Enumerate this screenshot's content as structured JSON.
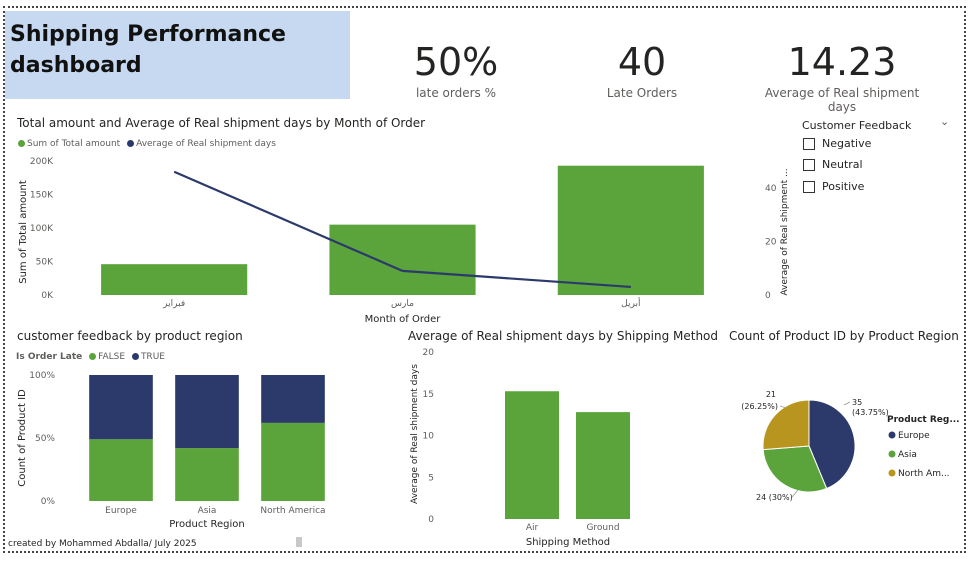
{
  "title": "Shipping Performance dashboard",
  "kpis": [
    {
      "value": "50%",
      "label": "late orders %"
    },
    {
      "value": "40",
      "label": "Late Orders"
    },
    {
      "value": "14.23",
      "label": "Average of Real shipment days"
    }
  ],
  "slicer": {
    "title": "Customer Feedback",
    "options": [
      "Negative",
      "Neutral",
      "Positive"
    ]
  },
  "footer": "created by Mohammed Abdalla/ July 2025",
  "colors": {
    "green": "#5ba33b",
    "navy": "#2b3a6b",
    "gold": "#b8951f",
    "title_bg": "#c6d9f0"
  },
  "chart_data": [
    {
      "type": "bar",
      "title": "Total amount and Average of Real shipment days by Month of Order",
      "legend": [
        "Sum of Total amount",
        "Average of Real shipment days"
      ],
      "categories": [
        "فبراير",
        "مارس",
        "أبريل"
      ],
      "series": [
        {
          "name": "Sum of Total amount",
          "type": "bar",
          "values": [
            46000,
            105000,
            193000
          ]
        },
        {
          "name": "Average of Real shipment days",
          "type": "line",
          "values": [
            46,
            9,
            3
          ]
        }
      ],
      "xlabel": "Month of Order",
      "ylabel": "Sum of Total amount",
      "y2label": "Average of Real shipment ...",
      "yticks": [
        "0K",
        "50K",
        "100K",
        "150K",
        "200K"
      ],
      "y2ticks": [
        "0",
        "20",
        "40"
      ],
      "ylim": [
        0,
        200000
      ],
      "y2lim": [
        0,
        50
      ]
    },
    {
      "type": "bar",
      "title": "customer feedback by product region",
      "legend_title": "Is Order Late",
      "legend": [
        "FALSE",
        "TRUE"
      ],
      "categories": [
        "Europe",
        "Asia",
        "North America"
      ],
      "series": [
        {
          "name": "FALSE",
          "values": [
            49,
            42,
            62
          ]
        },
        {
          "name": "TRUE",
          "values": [
            51,
            58,
            38
          ]
        }
      ],
      "xlabel": "Product Region",
      "ylabel": "Count of Product ID",
      "yticks": [
        "0%",
        "50%",
        "100%"
      ]
    },
    {
      "type": "bar",
      "title": "Average of Real shipment days by Shipping Method",
      "categories": [
        "Air",
        "Ground"
      ],
      "values": [
        15.3,
        12.8
      ],
      "xlabel": "Shipping Method",
      "ylabel": "Average of Real shipment days",
      "yticks": [
        "0",
        "5",
        "10",
        "15",
        "20"
      ],
      "ylim": [
        0,
        20
      ]
    },
    {
      "type": "pie",
      "title": "Count of Product ID by Product Region",
      "legend_title": "Product Reg...",
      "legend": [
        "Europe",
        "Asia",
        "North Am..."
      ],
      "values": [
        35,
        24,
        21
      ],
      "labels": [
        "35 (43.75%)",
        "24 (30%)",
        "21 (26.25%)"
      ]
    }
  ]
}
